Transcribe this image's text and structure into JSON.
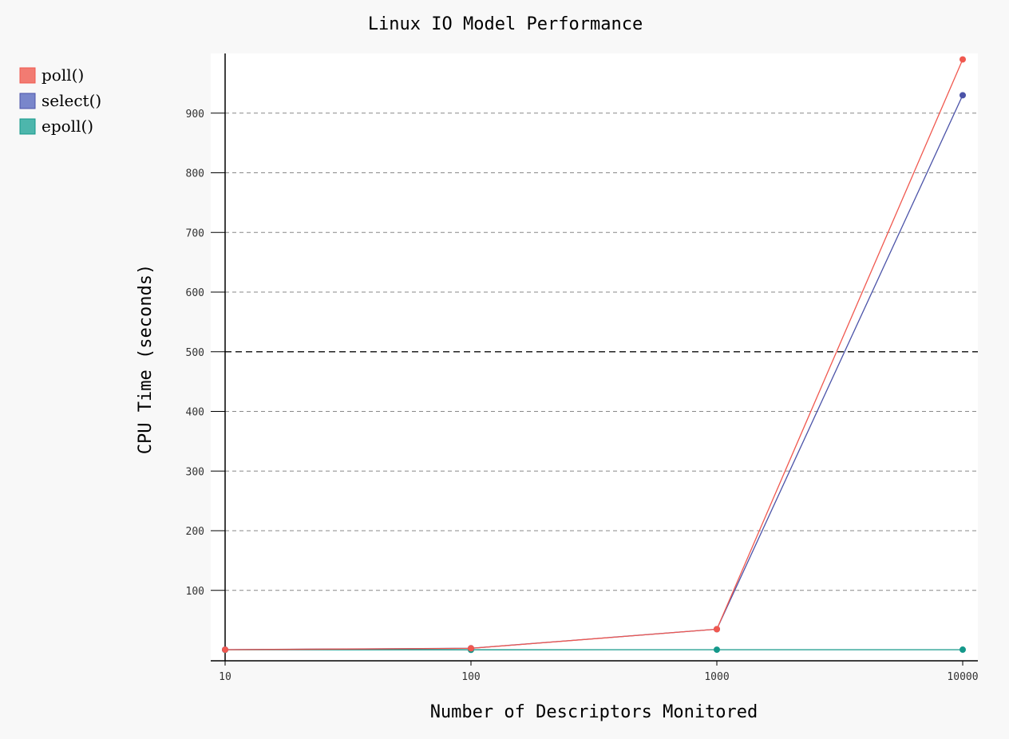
{
  "chart_data": {
    "type": "line",
    "title": "Linux IO Model Performance",
    "xlabel": "Number of Descriptors Monitored",
    "ylabel": "CPU Time (seconds)",
    "x_scale": "log",
    "x": [
      10,
      100,
      1000,
      10000
    ],
    "x_tick_labels": [
      "10",
      "100",
      "1000",
      "10000"
    ],
    "y_ticks": [
      100,
      200,
      300,
      400,
      500,
      600,
      700,
      800,
      900
    ],
    "ylim": [
      -18,
      1000
    ],
    "grid": "horizontal dashed",
    "highlight_gridline": 500,
    "legend_position": "top-left",
    "series": [
      {
        "name": "poll()",
        "color": "#f0584f",
        "legend_color": "#f27b72",
        "values": [
          0.61,
          2.9,
          35,
          990
        ]
      },
      {
        "name": "select()",
        "color": "#4b53a8",
        "legend_color": "#7986cb",
        "values": [
          0.73,
          3.0,
          35,
          930
        ]
      },
      {
        "name": "epoll()",
        "color": "#14988a",
        "legend_color": "#4db6ac",
        "values": [
          0.41,
          0.41,
          0.61,
          0.66
        ]
      }
    ]
  }
}
